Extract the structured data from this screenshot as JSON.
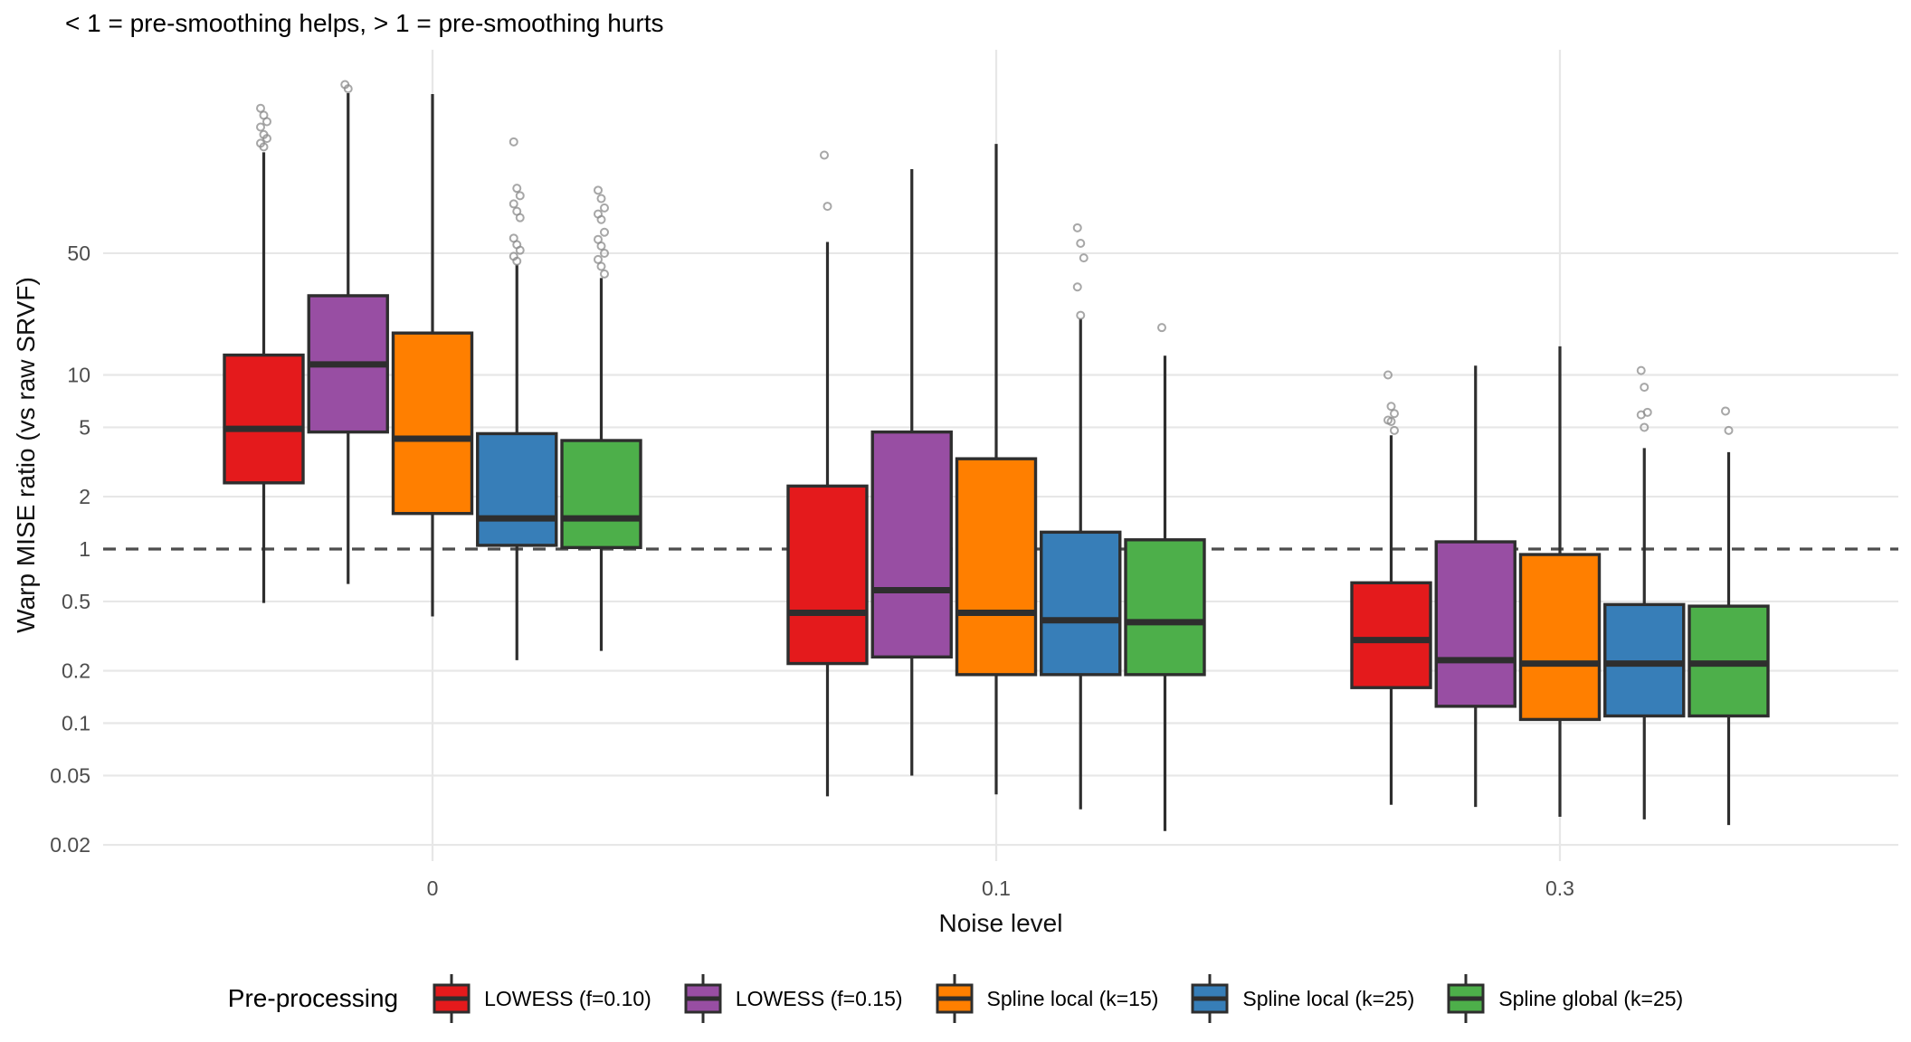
{
  "title": "< 1 = pre-smoothing helps, > 1 = pre-smoothing hurts",
  "axes": {
    "y_label": "Warp MISE ratio (vs raw SRVF)",
    "x_label": "Noise level",
    "y_ticks": [
      50,
      10,
      5,
      2,
      1,
      0.5,
      0.2,
      0.1,
      0.05,
      0.02
    ],
    "y_tick_labels": [
      "50",
      "10",
      "5",
      "2",
      "1",
      "0.5",
      "0.2",
      "0.1",
      "0.05",
      "0.02"
    ],
    "x_categories": [
      "0",
      "0.1",
      "0.3"
    ]
  },
  "reference_line": {
    "y": 1,
    "style": "dashed",
    "color": "#4d4d4d"
  },
  "colors": {
    "background": "#ffffff",
    "gridline": "#e7e7e7",
    "box_border": "#2e2e2e",
    "tick_text": "#4d4d4d",
    "outlier": "#8a8a8a"
  },
  "legend": {
    "title": "Pre-processing",
    "items": [
      {
        "label": "LOWESS (f=0.10)",
        "color": "#E41A1C"
      },
      {
        "label": "LOWESS (f=0.15)",
        "color": "#984EA3"
      },
      {
        "label": "Spline local (k=15)",
        "color": "#FF7F00"
      },
      {
        "label": "Spline local (k=25)",
        "color": "#377EB8"
      },
      {
        "label": "Spline global (k=25)",
        "color": "#4DAF4A"
      }
    ]
  },
  "chart_data": {
    "type": "boxplot",
    "title": "< 1 = pre-smoothing helps, > 1 = pre-smoothing hurts",
    "xlabel": "Noise level",
    "ylabel": "Warp MISE ratio (vs raw SRVF)",
    "y_scale": "log10",
    "ylim": [
      0.02,
      700
    ],
    "grid": "major-only",
    "legend_position": "bottom",
    "categories": [
      "0",
      "0.1",
      "0.3"
    ],
    "series": [
      {
        "name": "LOWESS (f=0.10)",
        "color": "#E41A1C",
        "boxes": [
          {
            "category": "0",
            "whisker_low": 0.49,
            "q1": 2.4,
            "median": 4.9,
            "q3": 13.0,
            "whisker_high": 190,
            "outliers": [
              340,
              310,
              285,
              265,
              240,
              228,
              214,
              204
            ]
          },
          {
            "category": "0.1",
            "whisker_low": 0.038,
            "q1": 0.22,
            "median": 0.43,
            "q3": 2.3,
            "whisker_high": 58,
            "outliers": [
              183,
              93
            ]
          },
          {
            "category": "0.3",
            "whisker_low": 0.034,
            "q1": 0.16,
            "median": 0.3,
            "q3": 0.64,
            "whisker_high": 4.5,
            "outliers": [
              10,
              6.6,
              6.0,
              5.5,
              5.4,
              4.8
            ]
          }
        ]
      },
      {
        "name": "LOWESS (f=0.15)",
        "color": "#984EA3",
        "boxes": [
          {
            "category": "0",
            "whisker_low": 0.63,
            "q1": 4.7,
            "median": 11.5,
            "q3": 28.5,
            "whisker_high": 415,
            "outliers": [
              465,
              440
            ]
          },
          {
            "category": "0.1",
            "whisker_low": 0.05,
            "q1": 0.24,
            "median": 0.58,
            "q3": 4.7,
            "whisker_high": 152,
            "outliers": []
          },
          {
            "category": "0.3",
            "whisker_low": 0.033,
            "q1": 0.125,
            "median": 0.23,
            "q3": 1.1,
            "whisker_high": 11.3,
            "outliers": []
          }
        ]
      },
      {
        "name": "Spline local (k=15)",
        "color": "#FF7F00",
        "boxes": [
          {
            "category": "0",
            "whisker_low": 0.41,
            "q1": 1.6,
            "median": 4.3,
            "q3": 17.4,
            "whisker_high": 410,
            "outliers": []
          },
          {
            "category": "0.1",
            "whisker_low": 0.039,
            "q1": 0.19,
            "median": 0.43,
            "q3": 3.3,
            "whisker_high": 212,
            "outliers": []
          },
          {
            "category": "0.3",
            "whisker_low": 0.029,
            "q1": 0.105,
            "median": 0.22,
            "q3": 0.93,
            "whisker_high": 14.6,
            "outliers": []
          }
        ]
      },
      {
        "name": "Spline local (k=25)",
        "color": "#377EB8",
        "boxes": [
          {
            "category": "0",
            "whisker_low": 0.23,
            "q1": 1.05,
            "median": 1.5,
            "q3": 4.6,
            "whisker_high": 43,
            "outliers": [
              218,
              118,
              107,
              96,
              87,
              80,
              61,
              56,
              52,
              48,
              45
            ]
          },
          {
            "category": "0.1",
            "whisker_low": 0.032,
            "q1": 0.19,
            "median": 0.39,
            "q3": 1.25,
            "whisker_high": 21,
            "outliers": [
              70,
              57,
              47,
              32,
              22
            ]
          },
          {
            "category": "0.3",
            "whisker_low": 0.028,
            "q1": 0.11,
            "median": 0.22,
            "q3": 0.48,
            "whisker_high": 3.8,
            "outliers": [
              10.6,
              8.5,
              6.1,
              5.9,
              5.0
            ]
          }
        ]
      },
      {
        "name": "Spline global (k=25)",
        "color": "#4DAF4A",
        "boxes": [
          {
            "category": "0",
            "whisker_low": 0.26,
            "q1": 1.02,
            "median": 1.5,
            "q3": 4.2,
            "whisker_high": 36,
            "outliers": [
              115,
              103,
              91,
              84,
              78,
              66,
              60,
              55,
              50,
              46,
              42,
              38
            ]
          },
          {
            "category": "0.1",
            "whisker_low": 0.024,
            "q1": 0.19,
            "median": 0.38,
            "q3": 1.13,
            "whisker_high": 12.9,
            "outliers": [
              18.7
            ]
          },
          {
            "category": "0.3",
            "whisker_low": 0.026,
            "q1": 0.11,
            "median": 0.22,
            "q3": 0.47,
            "whisker_high": 3.6,
            "outliers": [
              6.2,
              4.8
            ]
          }
        ]
      }
    ]
  }
}
